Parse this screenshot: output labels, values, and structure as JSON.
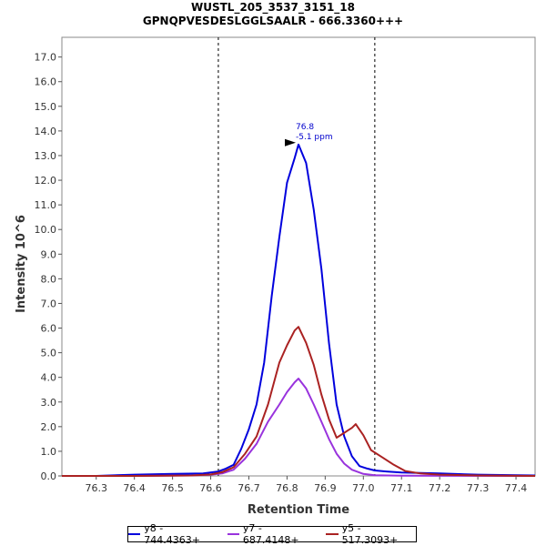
{
  "chart_data": {
    "type": "line",
    "title": "WUSTL_205_3537_3151_18",
    "subtitle": "GPNQPVESDESLGGLSAALR - 666.3360+++",
    "xlabel": "Retention Time",
    "ylabel": "Intensity 10^6",
    "xlim": [
      76.21,
      77.45
    ],
    "ylim": [
      0,
      17.8
    ],
    "x_ticks": [
      "76.3",
      "76.4",
      "76.5",
      "76.6",
      "76.7",
      "76.8",
      "76.9",
      "77.0",
      "77.1",
      "77.2",
      "77.3",
      "77.4"
    ],
    "y_ticks": [
      "0.0",
      "1.0",
      "2.0",
      "3.0",
      "4.0",
      "5.0",
      "6.0",
      "7.0",
      "8.0",
      "9.0",
      "10.0",
      "11.0",
      "12.0",
      "13.0",
      "14.0",
      "15.0",
      "16.0",
      "17.0"
    ],
    "integration_bounds": [
      76.62,
      77.03
    ],
    "peak_annotation": {
      "x": 76.83,
      "y": 13.45,
      "label_rt": "76.8",
      "label_ppm": "-5.1 ppm"
    },
    "legend_position": "bottom",
    "grid": false,
    "series": [
      {
        "name": "y8 - 744.4363+",
        "color": "#0000dd",
        "points": [
          [
            76.21,
            0.0
          ],
          [
            76.3,
            0.0
          ],
          [
            76.4,
            0.05
          ],
          [
            76.5,
            0.08
          ],
          [
            76.58,
            0.1
          ],
          [
            76.62,
            0.18
          ],
          [
            76.64,
            0.3
          ],
          [
            76.66,
            0.45
          ],
          [
            76.68,
            1.1
          ],
          [
            76.7,
            1.9
          ],
          [
            76.72,
            2.9
          ],
          [
            76.74,
            4.6
          ],
          [
            76.76,
            7.3
          ],
          [
            76.78,
            9.7
          ],
          [
            76.8,
            11.9
          ],
          [
            76.82,
            12.9
          ],
          [
            76.83,
            13.45
          ],
          [
            76.85,
            12.7
          ],
          [
            76.87,
            10.8
          ],
          [
            76.89,
            8.4
          ],
          [
            76.91,
            5.4
          ],
          [
            76.93,
            2.9
          ],
          [
            76.95,
            1.6
          ],
          [
            76.97,
            0.8
          ],
          [
            76.99,
            0.4
          ],
          [
            77.01,
            0.3
          ],
          [
            77.03,
            0.22
          ],
          [
            77.06,
            0.18
          ],
          [
            77.1,
            0.14
          ],
          [
            77.2,
            0.1
          ],
          [
            77.3,
            0.05
          ],
          [
            77.45,
            0.02
          ]
        ]
      },
      {
        "name": "y7 - 687.4148+",
        "color": "#9933dd",
        "points": [
          [
            76.21,
            0.0
          ],
          [
            76.4,
            0.0
          ],
          [
            76.55,
            0.02
          ],
          [
            76.6,
            0.05
          ],
          [
            76.63,
            0.1
          ],
          [
            76.66,
            0.25
          ],
          [
            76.69,
            0.7
          ],
          [
            76.72,
            1.3
          ],
          [
            76.75,
            2.2
          ],
          [
            76.78,
            2.9
          ],
          [
            76.8,
            3.4
          ],
          [
            76.82,
            3.8
          ],
          [
            76.83,
            3.95
          ],
          [
            76.85,
            3.55
          ],
          [
            76.87,
            2.9
          ],
          [
            76.89,
            2.2
          ],
          [
            76.91,
            1.5
          ],
          [
            76.93,
            0.9
          ],
          [
            76.95,
            0.5
          ],
          [
            76.97,
            0.25
          ],
          [
            77.0,
            0.08
          ],
          [
            77.03,
            0.03
          ],
          [
            77.1,
            0.01
          ],
          [
            77.45,
            0.0
          ]
        ]
      },
      {
        "name": "y5 - 517.3093+",
        "color": "#aa2222",
        "points": [
          [
            76.21,
            0.0
          ],
          [
            76.4,
            0.0
          ],
          [
            76.55,
            0.02
          ],
          [
            76.6,
            0.06
          ],
          [
            76.63,
            0.15
          ],
          [
            76.66,
            0.35
          ],
          [
            76.69,
            0.9
          ],
          [
            76.72,
            1.6
          ],
          [
            76.75,
            2.9
          ],
          [
            76.78,
            4.6
          ],
          [
            76.8,
            5.3
          ],
          [
            76.82,
            5.9
          ],
          [
            76.83,
            6.05
          ],
          [
            76.85,
            5.4
          ],
          [
            76.87,
            4.5
          ],
          [
            76.89,
            3.3
          ],
          [
            76.91,
            2.3
          ],
          [
            76.93,
            1.55
          ],
          [
            76.95,
            1.75
          ],
          [
            76.97,
            1.95
          ],
          [
            76.98,
            2.1
          ],
          [
            77.0,
            1.65
          ],
          [
            77.02,
            1.05
          ],
          [
            77.05,
            0.75
          ],
          [
            77.08,
            0.45
          ],
          [
            77.11,
            0.2
          ],
          [
            77.15,
            0.1
          ],
          [
            77.2,
            0.05
          ],
          [
            77.3,
            0.02
          ],
          [
            77.45,
            0.0
          ]
        ]
      }
    ]
  }
}
